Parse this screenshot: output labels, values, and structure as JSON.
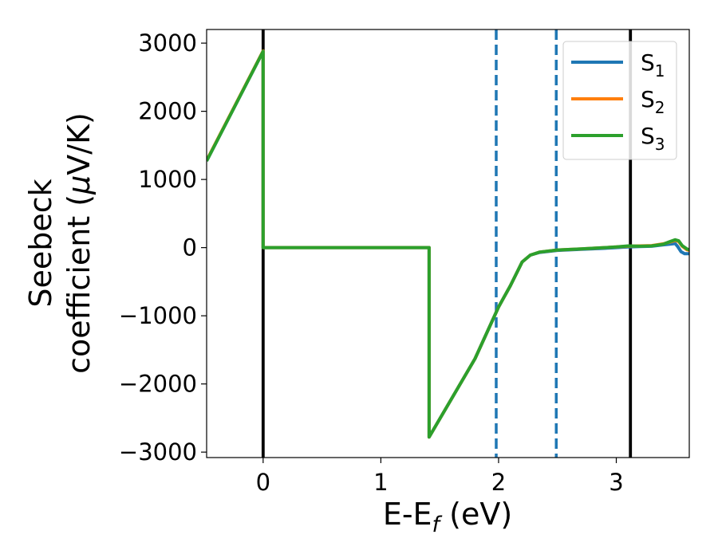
{
  "chart_data": {
    "type": "line",
    "xlabel": {
      "main": "E-E",
      "sub": "f",
      "unit": " (eV)"
    },
    "ylabel": {
      "line1": "Seebeck",
      "line2": "coefficient  (",
      "mu": "μ",
      "unit": "V/K)"
    },
    "xlim": [
      -0.48,
      3.62
    ],
    "ylim": [
      -3080,
      3200
    ],
    "xticks": [
      0,
      1,
      2,
      3
    ],
    "xtick_labels": [
      "0",
      "1",
      "2",
      "3"
    ],
    "yticks": [
      -3000,
      -2000,
      -1000,
      0,
      1000,
      2000,
      3000
    ],
    "ytick_labels": [
      "−3000",
      "−2000",
      "−1000",
      "0",
      "1000",
      "2000",
      "3000"
    ],
    "grid": false,
    "legend_position": "top-right",
    "series": [
      {
        "name": "S",
        "sub": "1",
        "color": "#1f77b4",
        "points": [
          [
            -0.48,
            1270
          ],
          [
            0,
            2880
          ],
          [
            0,
            0
          ],
          [
            1.41,
            0
          ],
          [
            1.41,
            -2780
          ],
          [
            1.8,
            -1630
          ],
          [
            2.0,
            -870
          ],
          [
            2.1,
            -560
          ],
          [
            2.2,
            -210
          ],
          [
            2.27,
            -110
          ],
          [
            2.35,
            -70
          ],
          [
            2.5,
            -40
          ],
          [
            2.7,
            -25
          ],
          [
            2.9,
            -10
          ],
          [
            3.0,
            0
          ],
          [
            3.1,
            10
          ],
          [
            3.2,
            15
          ],
          [
            3.3,
            20
          ],
          [
            3.4,
            40
          ],
          [
            3.45,
            50
          ],
          [
            3.5,
            60
          ],
          [
            3.52,
            20
          ],
          [
            3.55,
            -60
          ],
          [
            3.58,
            -90
          ],
          [
            3.62,
            -90
          ]
        ]
      },
      {
        "name": "S",
        "sub": "2",
        "color": "#ff7f0e",
        "points": [
          [
            -0.48,
            1280
          ],
          [
            0,
            2885
          ],
          [
            0,
            0
          ],
          [
            1.41,
            0
          ],
          [
            1.41,
            -2780
          ],
          [
            1.8,
            -1630
          ],
          [
            2.0,
            -870
          ],
          [
            2.1,
            -560
          ],
          [
            2.2,
            -210
          ],
          [
            2.27,
            -110
          ],
          [
            2.35,
            -65
          ],
          [
            2.5,
            -35
          ],
          [
            2.7,
            -20
          ],
          [
            2.9,
            0
          ],
          [
            3.0,
            10
          ],
          [
            3.1,
            20
          ],
          [
            3.2,
            25
          ],
          [
            3.3,
            30
          ],
          [
            3.4,
            55
          ],
          [
            3.45,
            80
          ],
          [
            3.5,
            105
          ],
          [
            3.53,
            90
          ],
          [
            3.56,
            20
          ],
          [
            3.6,
            -30
          ],
          [
            3.62,
            -40
          ]
        ]
      },
      {
        "name": "S",
        "sub": "3",
        "color": "#2ca02c",
        "points": [
          [
            -0.48,
            1270
          ],
          [
            0,
            2880
          ],
          [
            0,
            0
          ],
          [
            1.41,
            0
          ],
          [
            1.41,
            -2780
          ],
          [
            1.8,
            -1630
          ],
          [
            2.0,
            -870
          ],
          [
            2.1,
            -560
          ],
          [
            2.2,
            -210
          ],
          [
            2.27,
            -110
          ],
          [
            2.35,
            -65
          ],
          [
            2.5,
            -35
          ],
          [
            2.7,
            -20
          ],
          [
            2.9,
            0
          ],
          [
            3.0,
            10
          ],
          [
            3.1,
            25
          ],
          [
            3.2,
            20
          ],
          [
            3.3,
            25
          ],
          [
            3.4,
            50
          ],
          [
            3.45,
            85
          ],
          [
            3.5,
            115
          ],
          [
            3.53,
            100
          ],
          [
            3.56,
            30
          ],
          [
            3.6,
            -20
          ],
          [
            3.62,
            -30
          ]
        ]
      }
    ],
    "vlines": [
      {
        "x": 0,
        "style": "solid",
        "color": "#000000"
      },
      {
        "x": 3.12,
        "style": "solid",
        "color": "#000000"
      },
      {
        "x": 1.98,
        "style": "dashed",
        "color": "#1f77b4"
      },
      {
        "x": 2.49,
        "style": "dashed",
        "color": "#1f77b4"
      }
    ]
  }
}
